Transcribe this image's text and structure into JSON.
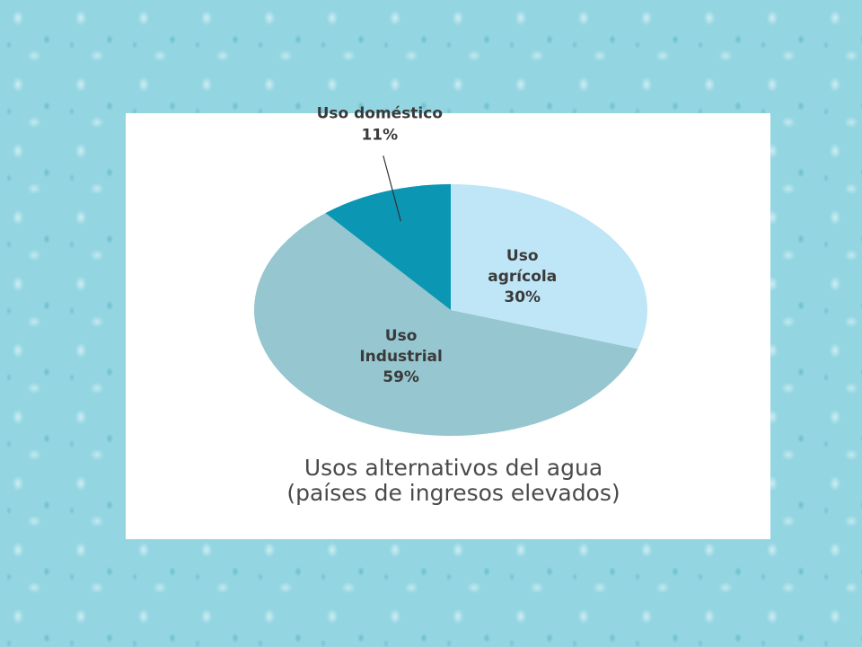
{
  "chart_data": {
    "type": "pie",
    "title": "Usos alternativos del agua",
    "subtitle": "(países de ingresos elevados)",
    "categories": [
      "Uso agrícola",
      "Uso Industrial",
      "Uso doméstico"
    ],
    "values": [
      30,
      59,
      11
    ],
    "value_labels": [
      "30%",
      "59%",
      "11%"
    ],
    "colors": [
      "#bfe6f6",
      "#96c6cf",
      "#0b96b4"
    ]
  }
}
